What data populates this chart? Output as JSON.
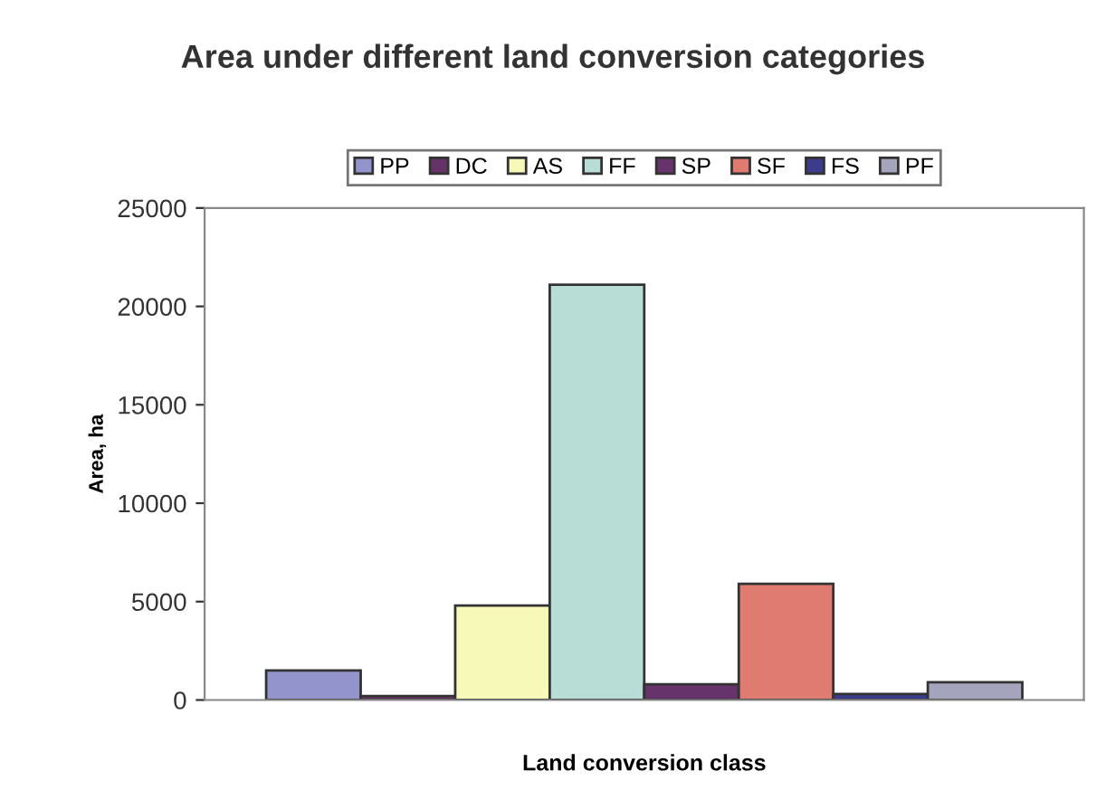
{
  "chart_data": {
    "type": "bar",
    "title": "Area under different land conversion categories",
    "xlabel": "Land conversion class",
    "ylabel": "Area, ha",
    "categories": [
      null
    ],
    "series": [
      {
        "name": "PP",
        "color": "#9494cc",
        "values": [
          1500
        ]
      },
      {
        "name": "DC",
        "color": "#663366",
        "values": [
          200
        ]
      },
      {
        "name": "AS",
        "color": "#f7f9b8",
        "values": [
          4800
        ]
      },
      {
        "name": "FF",
        "color": "#b8dcd6",
        "values": [
          21100
        ]
      },
      {
        "name": "SP",
        "color": "#66336b",
        "values": [
          800
        ]
      },
      {
        "name": "SF",
        "color": "#e07b72",
        "values": [
          5900
        ]
      },
      {
        "name": "FS",
        "color": "#3c3c8c",
        "values": [
          300
        ]
      },
      {
        "name": "PF",
        "color": "#a4a4bc",
        "values": [
          900
        ]
      }
    ],
    "ylim": [
      0,
      25000
    ],
    "yticks": [
      0,
      5000,
      10000,
      15000,
      20000,
      25000
    ],
    "grid": false,
    "legend": "top"
  }
}
